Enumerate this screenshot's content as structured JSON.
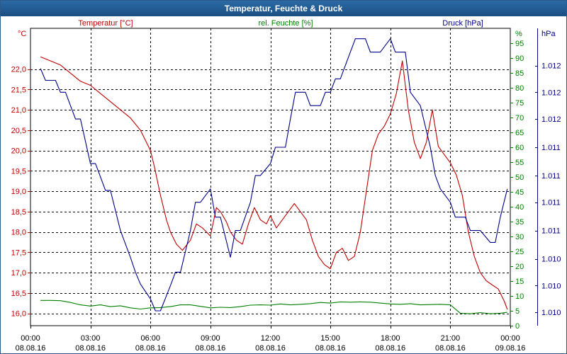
{
  "window": {
    "title": "Temperatur, Feuchte & Druck"
  },
  "chart_data": {
    "type": "line",
    "title": "Temperatur, Feuchte & Druck",
    "grid": true,
    "colors": {
      "temperature": "#c00000",
      "humidity": "#008000",
      "pressure": "#00008b"
    },
    "axes": {
      "temperature": {
        "unit": "°C",
        "header": "Temperatur [°C]",
        "ylim": [
          15.7,
          23.0
        ],
        "ticks": [
          "16,0",
          "16,5",
          "17,0",
          "17,5",
          "18,0",
          "18,5",
          "19,0",
          "19,5",
          "20,0",
          "20,5",
          "21,0",
          "21,5",
          "22,0"
        ],
        "tick_values": [
          16.0,
          16.5,
          17.0,
          17.5,
          18.0,
          18.5,
          19.0,
          19.5,
          20.0,
          20.5,
          21.0,
          21.5,
          22.0
        ]
      },
      "humidity": {
        "unit": "%",
        "header": "rel. Feuchte [%]",
        "ylim": [
          0,
          100
        ],
        "ticks": [
          "0",
          "5",
          "10",
          "15",
          "20",
          "25",
          "30",
          "35",
          "40",
          "45",
          "50",
          "55",
          "60",
          "65",
          "70",
          "75",
          "80",
          "85",
          "90",
          "95"
        ],
        "tick_values": [
          0,
          5,
          10,
          15,
          20,
          25,
          30,
          35,
          40,
          45,
          50,
          55,
          60,
          65,
          70,
          75,
          80,
          85,
          90,
          95
        ]
      },
      "pressure": {
        "unit": "hPa",
        "header": "Druck [hPa]",
        "ylim": [
          0,
          100
        ],
        "ticks": [
          "1.010",
          "1.010",
          "1.010",
          "1.011",
          "1.011",
          "1.011",
          "1.011",
          "1.012",
          "1.012",
          "1.012"
        ],
        "tick_values": [
          4.5,
          13.5,
          22.5,
          32.0,
          41.5,
          50.5,
          60.0,
          69.5,
          78.5,
          87.5
        ]
      }
    },
    "x_axis": {
      "range": [
        0,
        24
      ],
      "ticks": [
        0,
        3,
        6,
        9,
        12,
        15,
        18,
        21,
        24
      ],
      "time_labels": [
        "00:00",
        "03:00",
        "06:00",
        "09:00",
        "12:00",
        "15:00",
        "18:00",
        "21:00",
        "00:00"
      ],
      "date_labels": [
        "08.08.16",
        "08.08.16",
        "08.08.16",
        "08.08.16",
        "08.08.16",
        "08.08.16",
        "08.08.16",
        "08.08.16",
        "09.08.16"
      ]
    },
    "series": [
      {
        "name": "Temperatur",
        "axis": "temperature",
        "x": [
          0.5,
          1.0,
          1.5,
          2.0,
          2.5,
          3.0,
          3.5,
          4.0,
          4.5,
          5.0,
          5.5,
          6.0,
          6.2,
          6.5,
          6.8,
          7.0,
          7.3,
          7.6,
          8.0,
          8.3,
          8.6,
          9.0,
          9.3,
          9.5,
          9.8,
          10.0,
          10.3,
          10.6,
          10.9,
          11.2,
          11.5,
          11.8,
          12.0,
          12.3,
          12.6,
          12.9,
          13.2,
          13.5,
          13.8,
          14.1,
          14.4,
          14.7,
          15.0,
          15.3,
          15.6,
          15.9,
          16.2,
          16.5,
          16.8,
          17.1,
          17.4,
          17.7,
          18.0,
          18.3,
          18.6,
          18.9,
          19.2,
          19.5,
          19.8,
          20.1,
          20.4,
          20.7,
          21.0,
          21.3,
          21.6,
          21.9,
          22.2,
          22.5,
          22.8,
          23.1,
          23.4,
          23.7,
          23.85
        ],
        "values": [
          22.3,
          22.2,
          22.1,
          21.9,
          21.7,
          21.6,
          21.4,
          21.2,
          21.0,
          20.8,
          20.5,
          20.0,
          19.6,
          18.9,
          18.3,
          18.0,
          17.7,
          17.55,
          17.8,
          18.2,
          18.1,
          17.9,
          18.6,
          18.5,
          18.25,
          18.0,
          17.8,
          17.7,
          18.2,
          18.6,
          18.3,
          18.2,
          18.4,
          18.1,
          18.3,
          18.5,
          18.7,
          18.5,
          18.3,
          17.8,
          17.4,
          17.2,
          17.1,
          17.5,
          17.6,
          17.3,
          17.4,
          18.0,
          19.0,
          20.0,
          20.4,
          20.6,
          20.9,
          21.4,
          22.2,
          21.0,
          20.2,
          19.8,
          20.2,
          21.0,
          20.1,
          19.9,
          19.7,
          19.4,
          18.9,
          18.0,
          17.4,
          17.0,
          16.8,
          16.7,
          16.6,
          16.3,
          16.1
        ]
      },
      {
        "name": "rel. Feuchte",
        "axis": "humidity",
        "x": [
          0.5,
          1.0,
          1.5,
          2.0,
          2.5,
          3.0,
          3.5,
          4.0,
          4.5,
          5.0,
          5.5,
          6.0,
          6.5,
          7.0,
          7.5,
          8.0,
          8.5,
          9.0,
          9.5,
          10.0,
          10.5,
          11.0,
          11.5,
          12.0,
          12.5,
          13.0,
          13.5,
          14.0,
          14.5,
          15.0,
          15.5,
          16.0,
          16.5,
          17.0,
          17.5,
          18.0,
          18.5,
          19.0,
          19.5,
          20.0,
          20.5,
          21.0,
          21.5,
          22.0,
          22.5,
          23.0,
          23.5,
          23.85
        ],
        "values": [
          8.5,
          8.5,
          8.4,
          7.8,
          7.0,
          6.6,
          7.0,
          6.4,
          6.7,
          6.0,
          5.6,
          6.0,
          6.1,
          6.4,
          7.0,
          7.0,
          6.5,
          6.0,
          6.2,
          6.1,
          6.4,
          6.9,
          7.0,
          6.9,
          7.3,
          7.0,
          7.2,
          7.4,
          7.8,
          7.6,
          8.0,
          7.9,
          8.0,
          7.9,
          7.6,
          7.3,
          7.2,
          7.4,
          7.0,
          7.1,
          7.2,
          7.0,
          4.2,
          4.0,
          4.4,
          4.0,
          4.2,
          4.5
        ]
      },
      {
        "name": "Druck",
        "axis": "pressure",
        "x": [
          0.5,
          0.75,
          1.25,
          1.5,
          1.75,
          2.25,
          2.5,
          3.0,
          3.25,
          3.75,
          4.0,
          4.5,
          5.0,
          5.25,
          5.5,
          6.0,
          6.25,
          6.5,
          7.0,
          7.25,
          7.5,
          8.0,
          8.25,
          8.5,
          9.0,
          9.25,
          9.5,
          10.0,
          10.25,
          10.5,
          11.0,
          11.25,
          11.5,
          12.0,
          12.25,
          12.75,
          13.0,
          13.25,
          13.75,
          14.0,
          14.5,
          14.75,
          15.0,
          15.25,
          15.5,
          16.0,
          16.25,
          16.75,
          17.0,
          17.5,
          18.0,
          18.25,
          18.75,
          19.0,
          19.5,
          20.0,
          20.25,
          20.5,
          21.0,
          21.25,
          21.75,
          22.0,
          22.5,
          23.0,
          23.25,
          23.5,
          23.85
        ],
        "values": [
          86.5,
          82.5,
          82.5,
          78.5,
          78.5,
          69.5,
          69.5,
          54.5,
          54.5,
          45.5,
          45.5,
          32.0,
          23.0,
          18.0,
          14.0,
          9.0,
          5.0,
          5.0,
          13.5,
          18.0,
          18.0,
          32.0,
          41.5,
          41.5,
          46.0,
          36.5,
          36.5,
          23.0,
          32.0,
          32.0,
          41.5,
          50.5,
          50.5,
          54.5,
          60.0,
          60.0,
          69.5,
          78.5,
          78.5,
          74.0,
          74.0,
          78.5,
          78.5,
          83.0,
          83.0,
          92.0,
          96.5,
          96.5,
          92.0,
          92.0,
          96.5,
          92.0,
          92.0,
          78.5,
          74.0,
          60.0,
          50.5,
          46.0,
          41.5,
          36.5,
          36.5,
          32.0,
          32.0,
          28.0,
          28.0,
          36.5,
          46.0
        ]
      }
    ]
  }
}
